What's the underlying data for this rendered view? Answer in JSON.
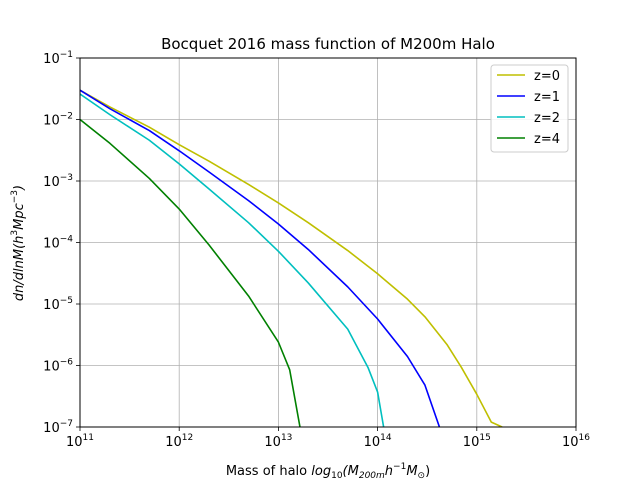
{
  "chart_data": {
    "type": "line",
    "title": "Bocquet 2016 mass function of M200m Halo",
    "xlabel": {
      "prefix": "Mass of halo ",
      "math_main": "log",
      "math_sub": "10",
      "math_open": "(M",
      "m_sub": "200m",
      "h_part": "h",
      "h_exp": "−1",
      "sun_part": "M",
      "sun_sub": "⊙",
      "close": ")"
    },
    "ylabel": {
      "text": "dn/dlnM(h",
      "exp1": "3",
      "mid": "Mpc",
      "exp2": "−3",
      "close": ")"
    },
    "x_scale": "log",
    "y_scale": "log",
    "xlim": [
      100000000000.0,
      1e+16
    ],
    "ylim": [
      1e-07,
      0.1
    ],
    "grid": true,
    "legend_position": "top-right",
    "x_ticks": [
      {
        "base": "10",
        "exp": "11",
        "value": 100000000000.0
      },
      {
        "base": "10",
        "exp": "12",
        "value": 1000000000000.0
      },
      {
        "base": "10",
        "exp": "13",
        "value": 10000000000000.0
      },
      {
        "base": "10",
        "exp": "14",
        "value": 100000000000000.0
      },
      {
        "base": "10",
        "exp": "15",
        "value": 1000000000000000.0
      },
      {
        "base": "10",
        "exp": "16",
        "value": 1e+16
      }
    ],
    "y_ticks": [
      {
        "base": "10",
        "exp": "−7",
        "value": 1e-07
      },
      {
        "base": "10",
        "exp": "−6",
        "value": 1e-06
      },
      {
        "base": "10",
        "exp": "−5",
        "value": 1e-05
      },
      {
        "base": "10",
        "exp": "−4",
        "value": 0.0001
      },
      {
        "base": "10",
        "exp": "−3",
        "value": 0.001
      },
      {
        "base": "10",
        "exp": "−2",
        "value": 0.01
      },
      {
        "base": "10",
        "exp": "−1",
        "value": 0.1
      }
    ],
    "series": [
      {
        "name": "z=0",
        "color": "#bfbf00",
        "points": [
          [
            100000000000.0,
            0.03
          ],
          [
            200000000000.0,
            0.016
          ],
          [
            500000000000.0,
            0.0075
          ],
          [
            1000000000000.0,
            0.0039
          ],
          [
            2000000000000.0,
            0.0021
          ],
          [
            5000000000000.0,
            0.00088
          ],
          [
            10000000000000.0,
            0.00044
          ],
          [
            20000000000000.0,
            0.00021
          ],
          [
            50000000000000.0,
            7.4e-05
          ],
          [
            100000000000000.0,
            3.1e-05
          ],
          [
            200000000000000.0,
            1.2e-05
          ],
          [
            300000000000000.0,
            6.2e-06
          ],
          [
            500000000000000.0,
            2.2e-06
          ],
          [
            700000000000000.0,
            9.3e-07
          ],
          [
            1000000000000000.0,
            3.4e-07
          ],
          [
            1400000000000000.0,
            1.2e-07
          ],
          [
            1800000000000000.0,
            1e-07
          ]
        ]
      },
      {
        "name": "z=1",
        "color": "#0000ff",
        "points": [
          [
            100000000000.0,
            0.03
          ],
          [
            200000000000.0,
            0.015
          ],
          [
            500000000000.0,
            0.0066
          ],
          [
            1000000000000.0,
            0.0031
          ],
          [
            2000000000000.0,
            0.0014
          ],
          [
            5000000000000.0,
            0.00048
          ],
          [
            10000000000000.0,
            0.0002
          ],
          [
            20000000000000.0,
            7.7e-05
          ],
          [
            50000000000000.0,
            1.9e-05
          ],
          [
            100000000000000.0,
            5.7e-06
          ],
          [
            200000000000000.0,
            1.4e-06
          ],
          [
            300000000000000.0,
            4.8e-07
          ],
          [
            420000000000000.0,
            1e-07
          ]
        ]
      },
      {
        "name": "z=2",
        "color": "#00bfbf",
        "points": [
          [
            100000000000.0,
            0.026
          ],
          [
            200000000000.0,
            0.012
          ],
          [
            500000000000.0,
            0.0046
          ],
          [
            1000000000000.0,
            0.0019
          ],
          [
            2000000000000.0,
            0.00074
          ],
          [
            5000000000000.0,
            0.00021
          ],
          [
            10000000000000.0,
            7.2e-05
          ],
          [
            20000000000000.0,
            2.2e-05
          ],
          [
            50000000000000.0,
            3.9e-06
          ],
          [
            80000000000000.0,
            9.3e-07
          ],
          [
            100000000000000.0,
            3.7e-07
          ],
          [
            115000000000000.0,
            1e-07
          ]
        ]
      },
      {
        "name": "z=4",
        "color": "#008000",
        "points": [
          [
            100000000000.0,
            0.01
          ],
          [
            200000000000.0,
            0.0041
          ],
          [
            500000000000.0,
            0.0011
          ],
          [
            1000000000000.0,
            0.00035
          ],
          [
            2000000000000.0,
            9.1e-05
          ],
          [
            5000000000000.0,
            1.35e-05
          ],
          [
            10000000000000.0,
            2.4e-06
          ],
          [
            13000000000000.0,
            8.5e-07
          ],
          [
            16500000000000.0,
            1e-07
          ]
        ]
      }
    ]
  }
}
